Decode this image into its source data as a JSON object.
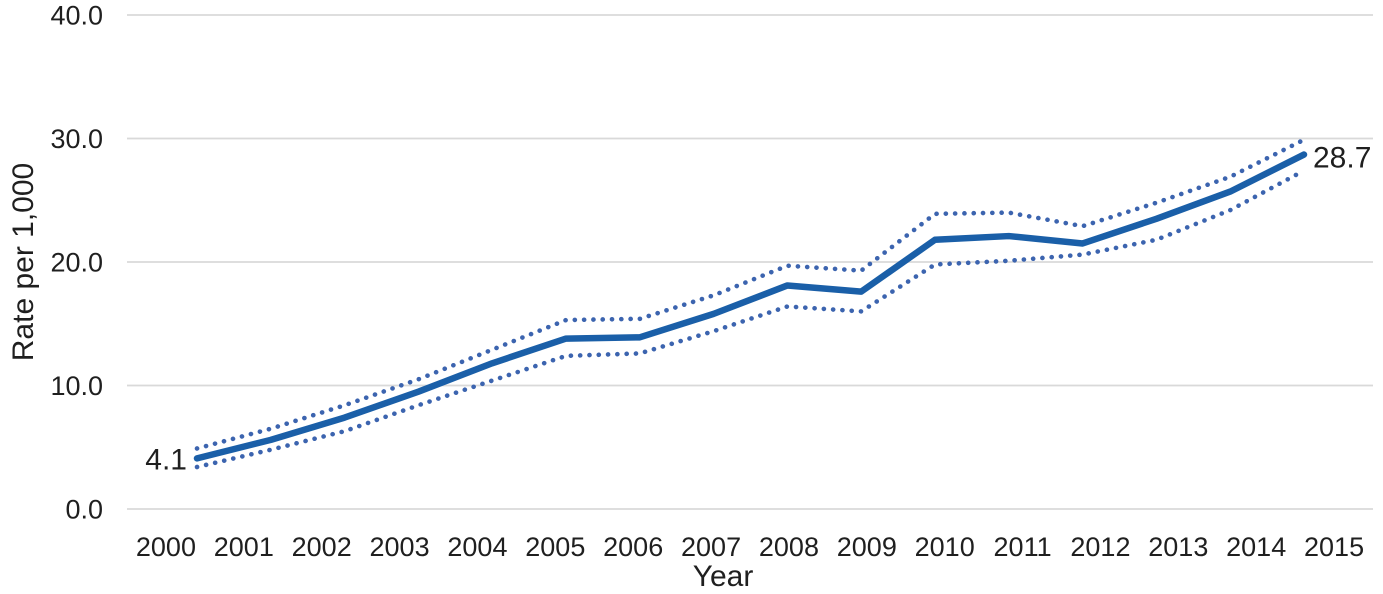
{
  "chart_data": {
    "type": "line",
    "xlabel": "Year",
    "ylabel": "Rate per 1,000",
    "categories": [
      "2000",
      "2001",
      "2002",
      "2003",
      "2004",
      "2005",
      "2006",
      "2007",
      "2008",
      "2009",
      "2010",
      "2011",
      "2012",
      "2013",
      "2014",
      "2015"
    ],
    "series": [
      {
        "name": "rate",
        "style": "solid",
        "color": "#1a5fa8",
        "values": [
          4.1,
          5.6,
          7.4,
          9.5,
          11.8,
          13.8,
          13.9,
          15.8,
          18.1,
          17.6,
          21.8,
          22.1,
          21.5,
          23.5,
          25.7,
          28.7
        ]
      },
      {
        "name": "upper-confidence-band",
        "style": "dotted",
        "color": "#3c64af",
        "values": [
          4.9,
          6.5,
          8.4,
          10.5,
          12.9,
          15.3,
          15.4,
          17.3,
          19.7,
          19.3,
          23.9,
          24.0,
          22.9,
          24.8,
          26.9,
          29.9
        ]
      },
      {
        "name": "lower-confidence-band",
        "style": "dotted",
        "color": "#3c64af",
        "values": [
          3.4,
          4.8,
          6.3,
          8.4,
          10.4,
          12.4,
          12.6,
          14.4,
          16.4,
          16.0,
          19.8,
          20.1,
          20.6,
          21.8,
          24.2,
          27.4
        ]
      }
    ],
    "ylim": [
      0,
      40
    ],
    "yticks": [
      0,
      10,
      20,
      30,
      40
    ],
    "ytick_labels": [
      "0.0",
      "10.0",
      "20.0",
      "30.0",
      "40.0"
    ],
    "grid": "horizontal",
    "legend": "none",
    "annotations": [
      {
        "text": "4.1",
        "x": "2000",
        "y": 4.1,
        "position": "left-of-first-point"
      },
      {
        "text": "28.7",
        "x": "2015",
        "y": 28.7,
        "position": "right-of-last-point"
      }
    ]
  },
  "colors": {
    "trend_line": "#1a5fa8",
    "confidence_band": "#3c64af",
    "gridline": "#d9d9d9",
    "text": "#1f1f1f",
    "background": "#ffffff"
  }
}
